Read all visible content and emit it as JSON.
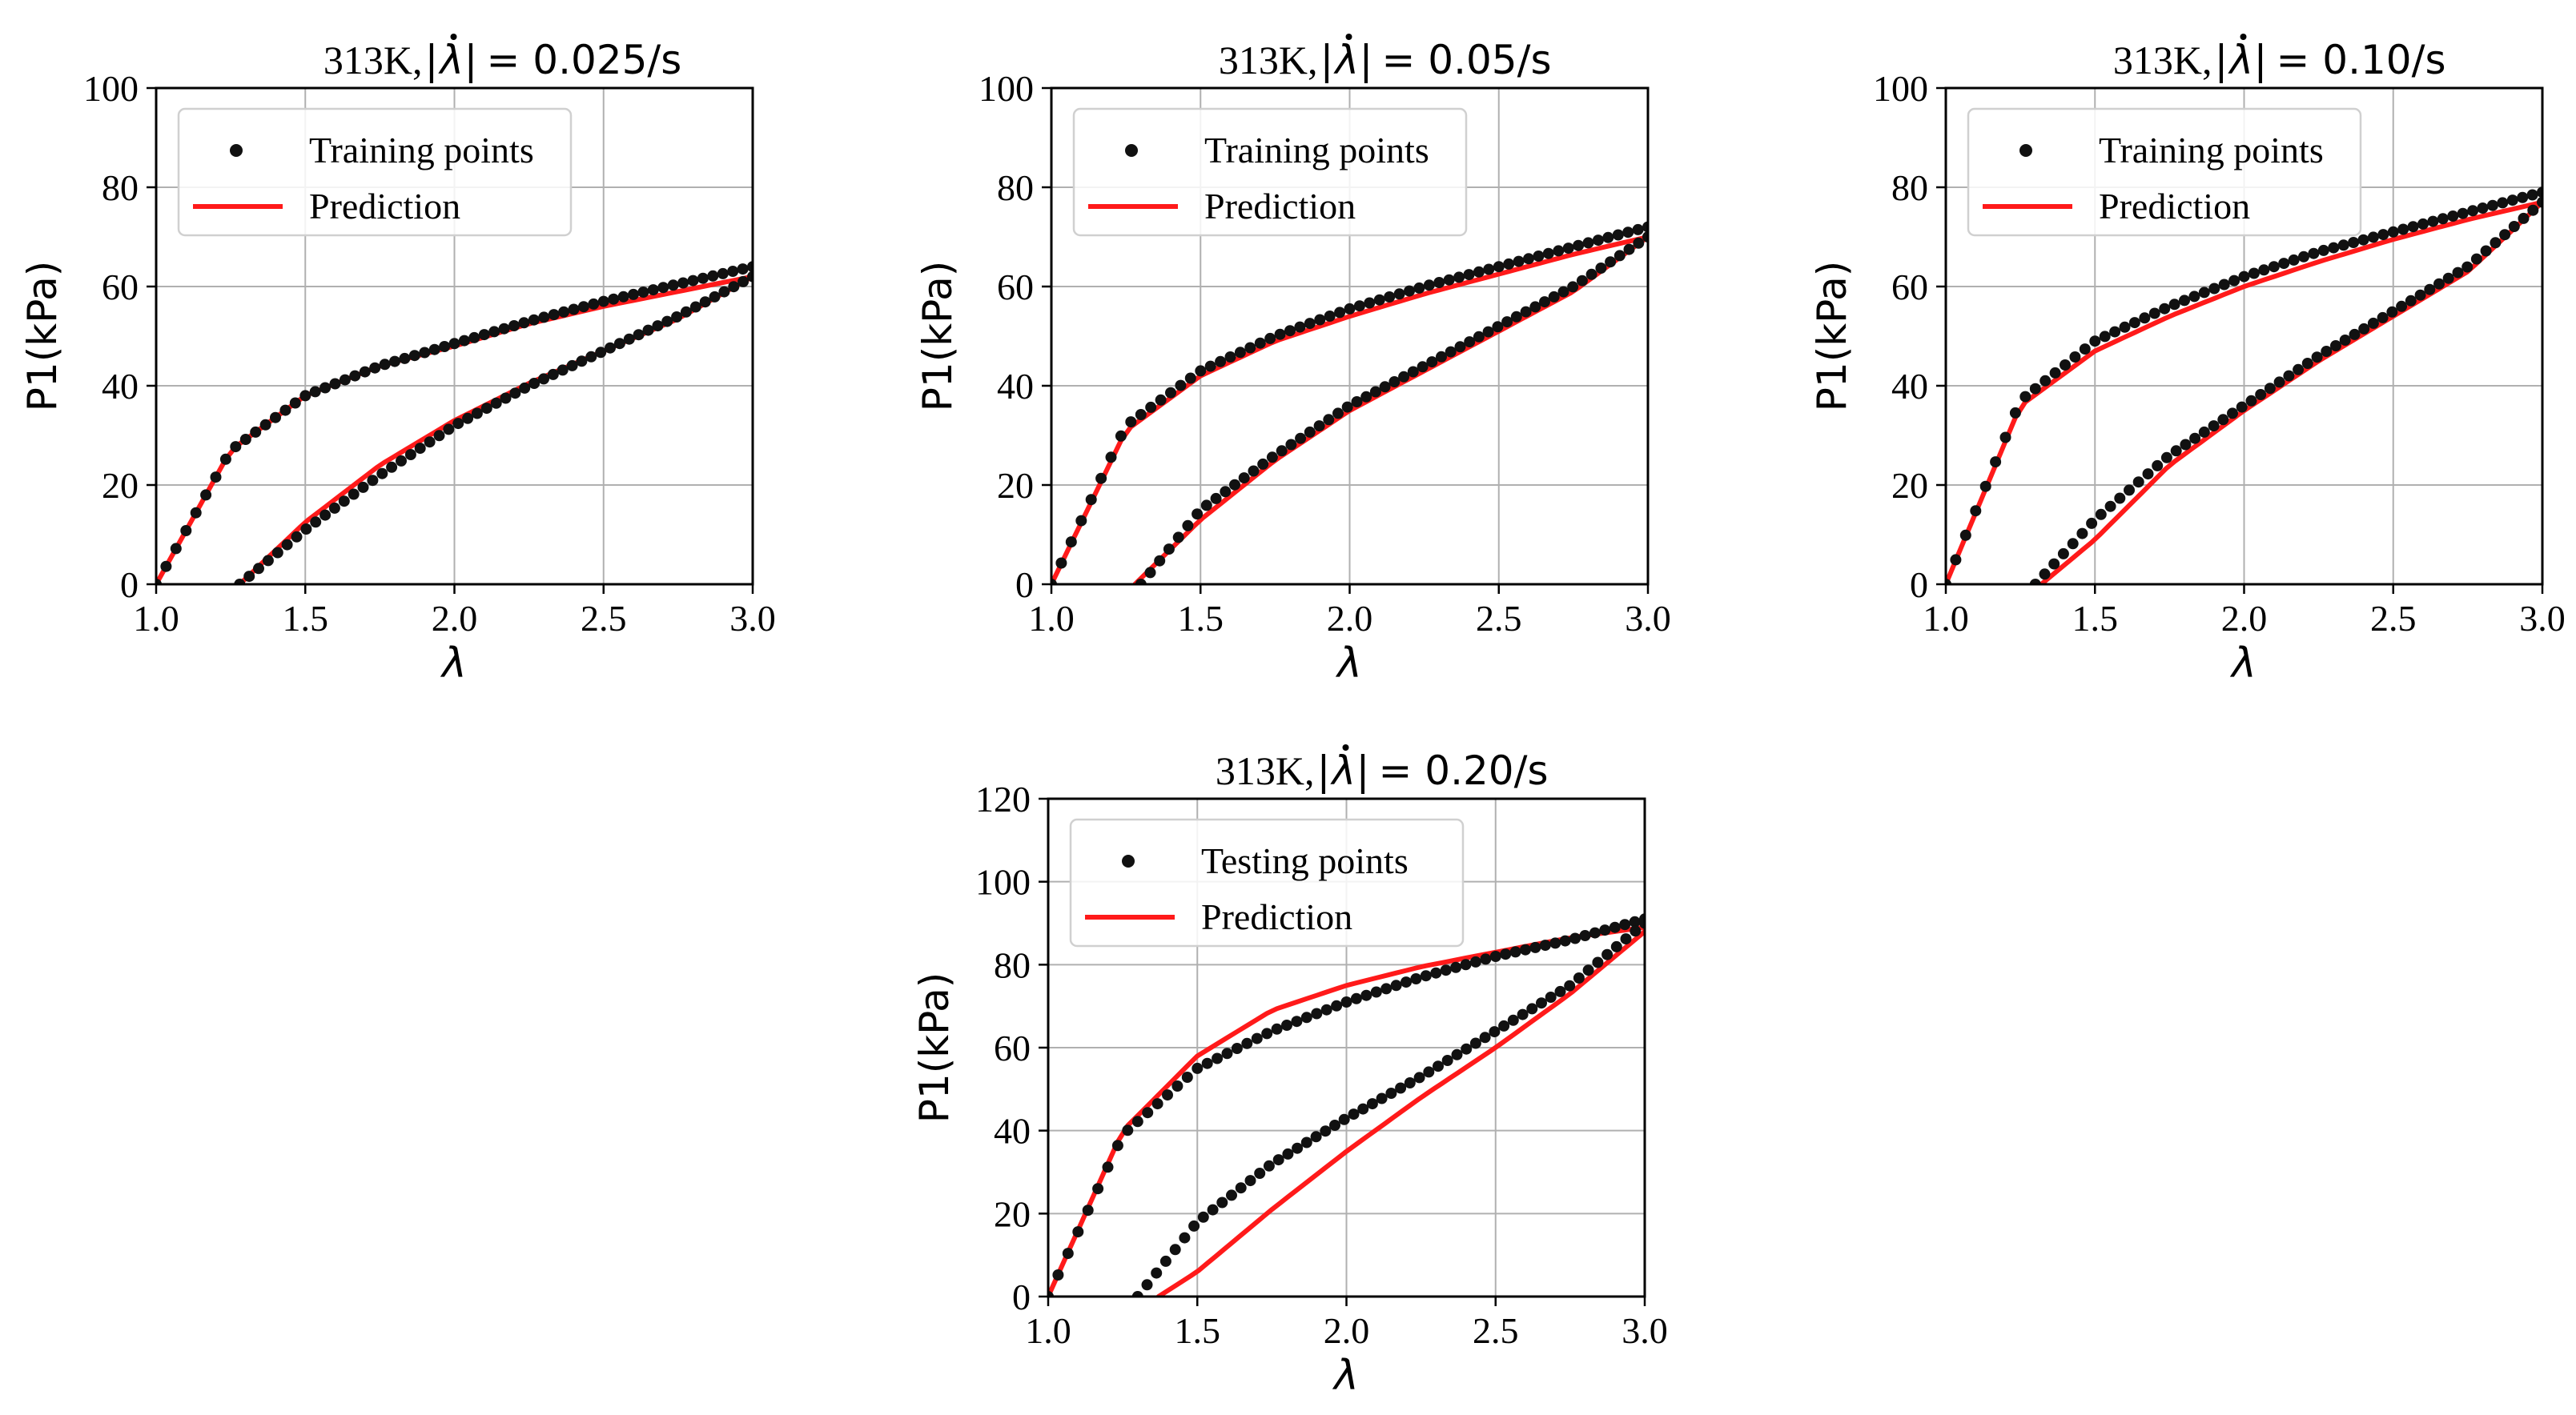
{
  "figure": {
    "domain": "Chart",
    "panel_count": 4
  },
  "chart_data": [
    {
      "type": "line",
      "title_prefix": "313K,",
      "title_suffix": "= 0.025/s",
      "rate": "0.025/s",
      "xlabel": "λ",
      "ylabel": "P1(kPa)",
      "xlim": [
        1.0,
        3.0
      ],
      "ylim": [
        0,
        100
      ],
      "xticks": [
        "1.0",
        "1.5",
        "2.0",
        "2.5",
        "3.0"
      ],
      "yticks": [
        "0",
        "20",
        "40",
        "60",
        "80",
        "100"
      ],
      "grid": true,
      "legend": {
        "position": "top-left",
        "points_label": "Training points",
        "line_label": "Prediction"
      },
      "series": [
        {
          "name": "Training points",
          "kind": "points",
          "color": "#111111",
          "loading": {
            "x": [
              1.0,
              1.25,
              1.5,
              1.75,
              2.0,
              2.25,
              2.5,
              2.75,
              3.0
            ],
            "y": [
              0,
              27,
              38,
              44,
              48.5,
              53,
              57,
              60.5,
              64
            ]
          },
          "unloading": {
            "x": [
              1.28,
              1.5,
              1.75,
              2.0,
              2.25,
              2.5,
              2.75,
              3.0
            ],
            "y": [
              0,
              11,
              22,
              32,
              40,
              47,
              54,
              62
            ]
          }
        },
        {
          "name": "Prediction",
          "kind": "line",
          "color": "#ff1a1a",
          "loading": {
            "x": [
              1.0,
              1.25,
              1.5,
              1.75,
              2.0,
              2.25,
              2.5,
              2.75,
              3.0
            ],
            "y": [
              0,
              27,
              38,
              44,
              48,
              52.5,
              56,
              59,
              62
            ]
          },
          "unloading": {
            "x": [
              1.28,
              1.5,
              1.75,
              2.0,
              2.25,
              2.5,
              2.75,
              3.0
            ],
            "y": [
              0,
              12.5,
              24,
              33,
              40.5,
              47,
              53.5,
              62
            ]
          }
        }
      ]
    },
    {
      "type": "line",
      "title_prefix": "313K,",
      "title_suffix": "= 0.05/s",
      "rate": "0.05/s",
      "xlabel": "λ",
      "ylabel": "P1(kPa)",
      "xlim": [
        1.0,
        3.0
      ],
      "ylim": [
        0,
        100
      ],
      "xticks": [
        "1.0",
        "1.5",
        "2.0",
        "2.5",
        "3.0"
      ],
      "yticks": [
        "0",
        "20",
        "40",
        "60",
        "80",
        "100"
      ],
      "grid": true,
      "legend": {
        "position": "top-left",
        "points_label": "Training points",
        "line_label": "Prediction"
      },
      "series": [
        {
          "name": "Training points",
          "kind": "points",
          "color": "#111111",
          "loading": {
            "x": [
              1.0,
              1.25,
              1.5,
              1.75,
              2.0,
              2.25,
              2.5,
              2.75,
              3.0
            ],
            "y": [
              0,
              32,
              43,
              50,
              55.5,
              60,
              64,
              68,
              72
            ]
          },
          "unloading": {
            "x": [
              1.3,
              1.5,
              1.75,
              2.0,
              2.25,
              2.5,
              2.75,
              3.0
            ],
            "y": [
              0,
              15,
              26,
              36,
              44,
              52,
              60,
              70
            ]
          }
        },
        {
          "name": "Prediction",
          "kind": "line",
          "color": "#ff1a1a",
          "loading": {
            "x": [
              1.0,
              1.25,
              1.5,
              1.75,
              2.0,
              2.25,
              2.5,
              2.75,
              3.0
            ],
            "y": [
              0,
              31,
              42,
              49,
              54,
              58.5,
              62.5,
              66.5,
              70
            ]
          },
          "unloading": {
            "x": [
              1.28,
              1.5,
              1.75,
              2.0,
              2.25,
              2.5,
              2.75,
              3.0
            ],
            "y": [
              0,
              13,
              25,
              35,
              43,
              51,
              59,
              70
            ]
          }
        }
      ]
    },
    {
      "type": "line",
      "title_prefix": "313K,",
      "title_suffix": "= 0.10/s",
      "rate": "0.10/s",
      "xlabel": "λ",
      "ylabel": "P1(kPa)",
      "xlim": [
        1.0,
        3.0
      ],
      "ylim": [
        0,
        100
      ],
      "xticks": [
        "1.0",
        "1.5",
        "2.0",
        "2.5",
        "3.0"
      ],
      "yticks": [
        "0",
        "20",
        "40",
        "60",
        "80",
        "100"
      ],
      "grid": true,
      "legend": {
        "position": "top-left",
        "points_label": "Training points",
        "line_label": "Prediction"
      },
      "series": [
        {
          "name": "Training points",
          "kind": "points",
          "color": "#111111",
          "loading": {
            "x": [
              1.0,
              1.25,
              1.5,
              1.75,
              2.0,
              2.25,
              2.5,
              2.75,
              3.0
            ],
            "y": [
              0,
              37,
              49,
              56,
              62,
              67,
              71,
              75,
              79
            ]
          },
          "unloading": {
            "x": [
              1.3,
              1.5,
              1.75,
              2.0,
              2.25,
              2.5,
              2.75,
              3.0
            ],
            "y": [
              0,
              13,
              26,
              36,
              46,
              55,
              64,
              77
            ]
          }
        },
        {
          "name": "Prediction",
          "kind": "line",
          "color": "#ff1a1a",
          "loading": {
            "x": [
              1.0,
              1.25,
              1.5,
              1.75,
              2.0,
              2.25,
              2.5,
              2.75,
              3.0
            ],
            "y": [
              0,
              36,
              47,
              54,
              60,
              65,
              69.5,
              73.5,
              77
            ]
          },
          "unloading": {
            "x": [
              1.32,
              1.5,
              1.75,
              2.0,
              2.25,
              2.5,
              2.75,
              3.0
            ],
            "y": [
              0,
              9,
              24,
              35,
              45,
              54,
              63,
              77
            ]
          }
        }
      ]
    },
    {
      "type": "line",
      "title_prefix": "313K,",
      "title_suffix": "= 0.20/s",
      "rate": "0.20/s",
      "xlabel": "λ",
      "ylabel": "P1(kPa)",
      "xlim": [
        1.0,
        3.0
      ],
      "ylim": [
        0,
        120
      ],
      "xticks": [
        "1.0",
        "1.5",
        "2.0",
        "2.5",
        "3.0"
      ],
      "yticks": [
        "0",
        "20",
        "40",
        "60",
        "80",
        "100",
        "120"
      ],
      "grid": true,
      "legend": {
        "position": "top-left",
        "points_label": "Testing points",
        "line_label": "Prediction"
      },
      "series": [
        {
          "name": "Testing points",
          "kind": "points",
          "color": "#111111",
          "loading": {
            "x": [
              1.0,
              1.25,
              1.5,
              1.75,
              2.0,
              2.25,
              2.5,
              2.75,
              3.0
            ],
            "y": [
              0,
              39,
              55,
              64,
              71,
              77,
              82,
              86,
              91
            ]
          },
          "unloading": {
            "x": [
              1.3,
              1.5,
              1.75,
              2.0,
              2.25,
              2.5,
              2.75,
              3.0
            ],
            "y": [
              0,
              18,
              32,
              43,
              53,
              64,
              75,
              90
            ]
          }
        },
        {
          "name": "Prediction",
          "kind": "line",
          "color": "#ff1a1a",
          "loading": {
            "x": [
              1.0,
              1.25,
              1.5,
              1.75,
              2.0,
              2.25,
              2.5,
              2.75,
              3.0
            ],
            "y": [
              0,
              40,
              58,
              69,
              75,
              79.5,
              83,
              86.5,
              89
            ]
          },
          "unloading": {
            "x": [
              1.37,
              1.5,
              1.75,
              2.0,
              2.25,
              2.5,
              2.75,
              3.0
            ],
            "y": [
              0,
              6,
              21,
              35,
              48,
              60,
              73,
              88
            ]
          }
        }
      ]
    }
  ]
}
